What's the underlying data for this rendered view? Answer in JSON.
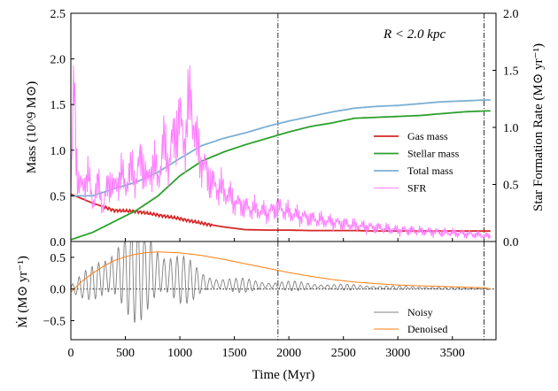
{
  "chart_data": [
    {
      "type": "line",
      "panel": "top",
      "title": "",
      "annotation": "R < 2.0 kpc",
      "xlabel": "",
      "ylabel": "Mass (10^9 M⊙)",
      "ylabel_right": "Star Formation Rate (M⊙ yr⁻¹)",
      "xlim": [
        0,
        3900
      ],
      "ylim": [
        0,
        2.5
      ],
      "ylim_right": [
        0,
        2.0
      ],
      "yticks": [
        0.0,
        0.5,
        1.0,
        1.5,
        2.0,
        2.5
      ],
      "yticks_right": [
        0.0,
        0.5,
        1.0,
        1.5,
        2.0
      ],
      "vlines": [
        1900,
        3790
      ],
      "legend_position": "center-right",
      "series": [
        {
          "name": "Gas mass",
          "color": "#d62728",
          "axis": "left",
          "x": [
            0,
            200,
            400,
            600,
            800,
            1000,
            1200,
            1400,
            1600,
            1800,
            2000,
            2200,
            2400,
            2600,
            2800,
            3000,
            3200,
            3400,
            3600,
            3800
          ],
          "values": [
            0.52,
            0.42,
            0.34,
            0.33,
            0.29,
            0.25,
            0.2,
            0.16,
            0.13,
            0.125,
            0.125,
            0.12,
            0.12,
            0.12,
            0.115,
            0.115,
            0.115,
            0.115,
            0.115,
            0.115
          ]
        },
        {
          "name": "Stellar mass",
          "color": "#2ca02c",
          "axis": "left",
          "x": [
            0,
            200,
            400,
            600,
            800,
            1000,
            1200,
            1400,
            1600,
            1800,
            2000,
            2200,
            2400,
            2600,
            2800,
            3000,
            3200,
            3400,
            3600,
            3800
          ],
          "values": [
            0.02,
            0.1,
            0.22,
            0.34,
            0.5,
            0.72,
            0.88,
            0.98,
            1.06,
            1.13,
            1.2,
            1.26,
            1.3,
            1.35,
            1.36,
            1.37,
            1.38,
            1.4,
            1.42,
            1.43
          ]
        },
        {
          "name": "Total mass",
          "color": "#7bafd4",
          "axis": "left",
          "x": [
            0,
            200,
            400,
            600,
            800,
            1000,
            1200,
            1400,
            1600,
            1800,
            2000,
            2200,
            2400,
            2600,
            2800,
            3000,
            3200,
            3400,
            3600,
            3800
          ],
          "values": [
            0.5,
            0.5,
            0.58,
            0.65,
            0.76,
            0.91,
            1.05,
            1.13,
            1.19,
            1.26,
            1.32,
            1.37,
            1.42,
            1.46,
            1.48,
            1.49,
            1.51,
            1.53,
            1.54,
            1.55
          ]
        },
        {
          "name": "SFR",
          "color": "#ff80ff",
          "axis": "right",
          "x": [
            0,
            30,
            60,
            100,
            150,
            200,
            250,
            300,
            350,
            400,
            450,
            500,
            550,
            600,
            650,
            700,
            750,
            800,
            850,
            900,
            950,
            1000,
            1050,
            1100,
            1150,
            1200,
            1250,
            1300,
            1400,
            1500,
            1600,
            1700,
            1800,
            1900,
            2000,
            2200,
            2400,
            2600,
            2800,
            3000,
            3200,
            3400,
            3600,
            3700,
            3800,
            3850
          ],
          "values": [
            0.4,
            1.4,
            0.55,
            0.45,
            0.6,
            0.35,
            0.5,
            0.3,
            0.55,
            0.45,
            0.6,
            0.5,
            0.62,
            0.55,
            0.75,
            0.5,
            0.7,
            0.55,
            0.85,
            0.7,
            0.95,
            1.05,
            0.9,
            1.3,
            0.85,
            0.7,
            0.6,
            0.5,
            0.45,
            0.35,
            0.3,
            0.28,
            0.25,
            0.3,
            0.25,
            0.2,
            0.17,
            0.14,
            0.12,
            0.1,
            0.09,
            0.08,
            0.07,
            0.06,
            0.05,
            0.05
          ]
        }
      ]
    },
    {
      "type": "line",
      "panel": "bottom",
      "xlabel": "Time (Myr)",
      "ylabel": "Ṁ (M⊙ yr⁻¹)",
      "xlim": [
        0,
        3900
      ],
      "ylim": [
        -0.8,
        0.75
      ],
      "xticks": [
        0,
        500,
        1000,
        1500,
        2000,
        2500,
        3000,
        3500
      ],
      "yticks": [
        -0.5,
        0.0,
        0.5
      ],
      "hline": 0.0,
      "vlines": [
        1900,
        3790
      ],
      "legend_position": "bottom-right",
      "series": [
        {
          "name": "Noisy",
          "color": "#808080",
          "envelope_x": [
            0,
            200,
            400,
            600,
            800,
            1000,
            1200,
            1500,
            2000,
            2500,
            3000,
            3500,
            3850
          ],
          "envelope_amp": [
            0.08,
            0.3,
            0.75,
            0.85,
            0.7,
            0.45,
            0.2,
            0.12,
            0.08,
            0.05,
            0.03,
            0.02,
            0.02
          ],
          "envelope_offset": [
            0.0,
            0.1,
            0.25,
            0.3,
            0.25,
            0.15,
            0.1,
            0.06,
            0.05,
            0.03,
            0.02,
            0.01,
            0.0
          ],
          "period": 60
        },
        {
          "name": "Denoised",
          "color": "#ff7f0e",
          "x": [
            0,
            100,
            200,
            300,
            400,
            500,
            600,
            700,
            800,
            900,
            1000,
            1200,
            1400,
            1600,
            1800,
            2000,
            2200,
            2400,
            2600,
            2800,
            3000,
            3200,
            3400,
            3600,
            3800,
            3850
          ],
          "values": [
            -0.05,
            0.12,
            0.25,
            0.36,
            0.45,
            0.51,
            0.55,
            0.575,
            0.585,
            0.58,
            0.57,
            0.53,
            0.47,
            0.4,
            0.33,
            0.26,
            0.2,
            0.15,
            0.11,
            0.085,
            0.065,
            0.05,
            0.04,
            0.03,
            0.02,
            0.0
          ]
        }
      ]
    }
  ]
}
